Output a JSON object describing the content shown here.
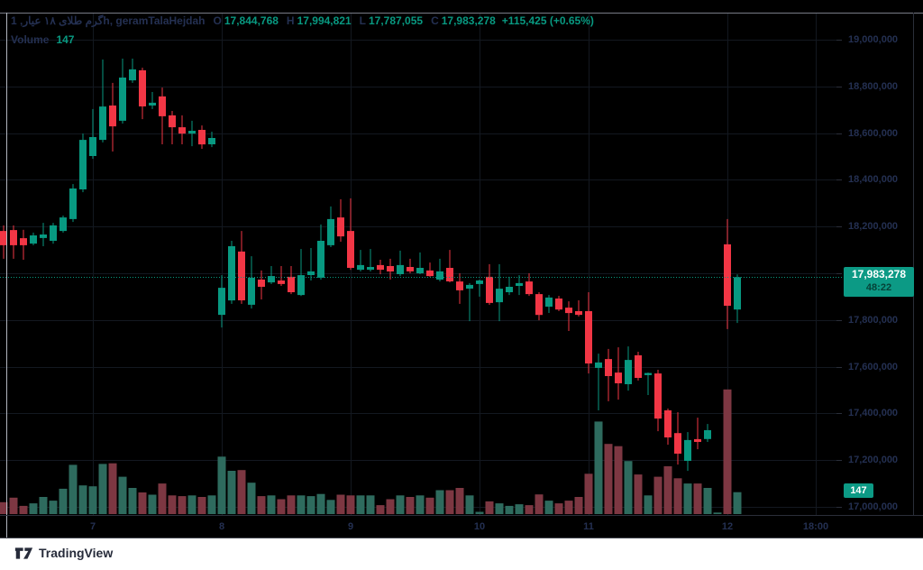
{
  "legend": {
    "symbol": "گرم طلای ۱۸ عیار, 1h, geramTalaHejdah",
    "o_label": "O",
    "o_value": "17,844,768",
    "h_label": "H",
    "h_value": "17,994,821",
    "l_label": "L",
    "l_value": "17,787,055",
    "c_label": "C",
    "c_value": "17,983,278",
    "change": "+115,425 (+0.65%)",
    "volume_label": "Volume",
    "volume_value": "147"
  },
  "price_scale": {
    "ticks": [
      {
        "label": "19,000,000",
        "value": 19000000
      },
      {
        "label": "18,800,000",
        "value": 18800000
      },
      {
        "label": "18,600,000",
        "value": 18600000
      },
      {
        "label": "18,400,000",
        "value": 18400000
      },
      {
        "label": "18,200,000",
        "value": 18200000
      },
      {
        "label": "18,000,000",
        "value": 18000000
      },
      {
        "label": "17,800,000",
        "value": 17800000
      },
      {
        "label": "17,600,000",
        "value": 17600000
      },
      {
        "label": "17,400,000",
        "value": 17400000
      },
      {
        "label": "17,200,000",
        "value": 17200000
      },
      {
        "label": "17,000,000",
        "value": 17000000
      }
    ],
    "price_label": {
      "price": "17,983,278",
      "countdown": "48:22"
    },
    "volume_badge": "147"
  },
  "time_scale": {
    "day_labels": [
      {
        "label": "7",
        "slot": 9
      },
      {
        "label": "8",
        "slot": 22
      },
      {
        "label": "9",
        "slot": 35
      },
      {
        "label": "10",
        "slot": 48
      },
      {
        "label": "11",
        "slot": 59
      },
      {
        "label": "12",
        "slot": 73
      }
    ],
    "future_label": {
      "label": "18:00",
      "x": 905
    }
  },
  "footer": {
    "brand": "TradingView"
  },
  "colors": {
    "up": "#089981",
    "down": "#f23645",
    "volume_up": "#2e6b5e",
    "volume_down": "#7d3742",
    "label_bg": "#0c9a85",
    "axis_text": "#243052",
    "grid": "#131820",
    "separator": "#2a2e39",
    "pane_edge": "#b2b5be",
    "price_line": "#089981"
  },
  "chart_data": {
    "type": "candlestick",
    "symbol": "گرم طلای ۱۸ عیار, 1h, geramTalaHejdah",
    "interval": "1h",
    "title": "geramTalaHejdah 1h candlestick with volume",
    "ylim": [
      17000000,
      19000000
    ],
    "y_tick_step": 200000,
    "grid": true,
    "price_line": 17983278,
    "current_bar": {
      "open": 17844768,
      "high": 17994821,
      "low": 17787055,
      "close": 17983278,
      "change": 115425,
      "change_pct": 0.65,
      "volume": 147
    },
    "candles": [
      [
        18181000,
        18205000,
        18062000,
        18120000,
        80
      ],
      [
        18185000,
        18205000,
        18062000,
        18120000,
        110
      ],
      [
        18150000,
        18186000,
        18058000,
        18120000,
        55
      ],
      [
        18127000,
        18174000,
        18120000,
        18162000,
        72
      ],
      [
        18151000,
        18216000,
        18116000,
        18166000,
        115
      ],
      [
        18139000,
        18216000,
        18127000,
        18205000,
        90
      ],
      [
        18181000,
        18247000,
        18174000,
        18239000,
        170
      ],
      [
        18232000,
        18382000,
        18220000,
        18363000,
        330
      ],
      [
        18359000,
        18598000,
        18347000,
        18571000,
        192
      ],
      [
        18502000,
        18703000,
        18490000,
        18583000,
        186
      ],
      [
        18571000,
        18915000,
        18560000,
        18714000,
        336
      ],
      [
        18718000,
        18815000,
        18521000,
        18629000,
        340
      ],
      [
        18653000,
        18919000,
        18641000,
        18838000,
        250
      ],
      [
        18826000,
        18919000,
        18815000,
        18873000,
        175
      ],
      [
        18869000,
        18880000,
        18660000,
        18714000,
        145
      ],
      [
        18718000,
        18776000,
        18703000,
        18730000,
        130
      ],
      [
        18757000,
        18795000,
        18552000,
        18672000,
        205
      ],
      [
        18676000,
        18695000,
        18552000,
        18625000,
        125
      ],
      [
        18625000,
        18676000,
        18552000,
        18598000,
        120
      ],
      [
        18598000,
        18653000,
        18544000,
        18610000,
        125
      ],
      [
        18614000,
        18633000,
        18533000,
        18552000,
        115
      ],
      [
        18552000,
        18606000,
        18540000,
        18579000,
        125
      ],
      [
        17822000,
        17992000,
        17768000,
        17938000,
        385
      ],
      [
        17884000,
        18139000,
        17869000,
        18116000,
        290
      ],
      [
        18093000,
        18181000,
        17869000,
        17884000,
        295
      ],
      [
        17865000,
        18073000,
        17849000,
        17981000,
        210
      ],
      [
        17973000,
        18012000,
        17888000,
        17942000,
        120
      ],
      [
        17961000,
        18031000,
        17954000,
        17988000,
        125
      ],
      [
        17969000,
        18031000,
        17946000,
        17954000,
        100
      ],
      [
        17985000,
        18031000,
        17911000,
        17919000,
        125
      ],
      [
        17907000,
        18104000,
        17903000,
        17992000,
        125
      ],
      [
        17992000,
        18108000,
        17969000,
        18008000,
        120
      ],
      [
        17981000,
        18209000,
        17973000,
        18139000,
        135
      ],
      [
        18120000,
        18286000,
        18112000,
        18232000,
        95
      ],
      [
        18239000,
        18317000,
        18135000,
        18158000,
        130
      ],
      [
        18181000,
        18321000,
        18015000,
        18023000,
        125
      ],
      [
        18015000,
        18100000,
        18008000,
        18035000,
        125
      ],
      [
        18015000,
        18104000,
        18008000,
        18027000,
        125
      ],
      [
        18035000,
        18058000,
        17996000,
        18015000,
        60
      ],
      [
        18031000,
        18062000,
        17973000,
        18008000,
        100
      ],
      [
        17996000,
        18097000,
        17988000,
        18035000,
        125
      ],
      [
        18027000,
        18062000,
        18000000,
        18008000,
        115
      ],
      [
        18000000,
        18089000,
        17996000,
        18023000,
        125
      ],
      [
        18012000,
        18046000,
        17985000,
        17988000,
        110
      ],
      [
        17973000,
        18062000,
        17965000,
        18008000,
        160
      ],
      [
        18023000,
        18100000,
        17961000,
        17965000,
        160
      ],
      [
        17965000,
        18000000,
        17869000,
        17927000,
        175
      ],
      [
        17934000,
        17958000,
        17795000,
        17950000,
        125
      ],
      [
        17954000,
        17973000,
        17900000,
        17969000,
        15
      ],
      [
        17985000,
        18039000,
        17865000,
        17873000,
        85
      ],
      [
        17876000,
        18039000,
        17795000,
        17934000,
        72
      ],
      [
        17919000,
        17985000,
        17907000,
        17942000,
        55
      ],
      [
        17946000,
        17992000,
        17907000,
        17958000,
        66
      ],
      [
        17965000,
        18000000,
        17903000,
        17911000,
        60
      ],
      [
        17911000,
        17919000,
        17799000,
        17822000,
        132
      ],
      [
        17857000,
        17907000,
        17830000,
        17896000,
        90
      ],
      [
        17892000,
        17903000,
        17838000,
        17845000,
        72
      ],
      [
        17853000,
        17880000,
        17753000,
        17830000,
        90
      ],
      [
        17838000,
        17884000,
        17815000,
        17822000,
        115
      ],
      [
        17838000,
        17919000,
        17571000,
        17614000,
        270
      ],
      [
        17595000,
        17656000,
        17413000,
        17618000,
        620
      ],
      [
        17633000,
        17676000,
        17452000,
        17560000,
        470
      ],
      [
        17575000,
        17683000,
        17459000,
        17529000,
        455
      ],
      [
        17525000,
        17687000,
        17498000,
        17629000,
        355
      ],
      [
        17649000,
        17664000,
        17541000,
        17552000,
        265
      ],
      [
        17564000,
        17575000,
        17479000,
        17573000,
        125
      ],
      [
        17571000,
        17587000,
        17324000,
        17378000,
        250
      ],
      [
        17413000,
        17421000,
        17266000,
        17297000,
        320
      ],
      [
        17316000,
        17405000,
        17181000,
        17228000,
        240
      ],
      [
        17197000,
        17320000,
        17154000,
        17286000,
        205
      ],
      [
        17290000,
        17382000,
        17247000,
        17278000,
        205
      ],
      [
        17290000,
        17355000,
        17278000,
        17328000,
        175
      ],
      [
        null,
        null,
        null,
        null,
        10
      ],
      [
        18124000,
        18232000,
        17761000,
        17861000,
        835
      ],
      [
        17844768,
        17994821,
        17787055,
        17983278,
        147
      ]
    ]
  }
}
